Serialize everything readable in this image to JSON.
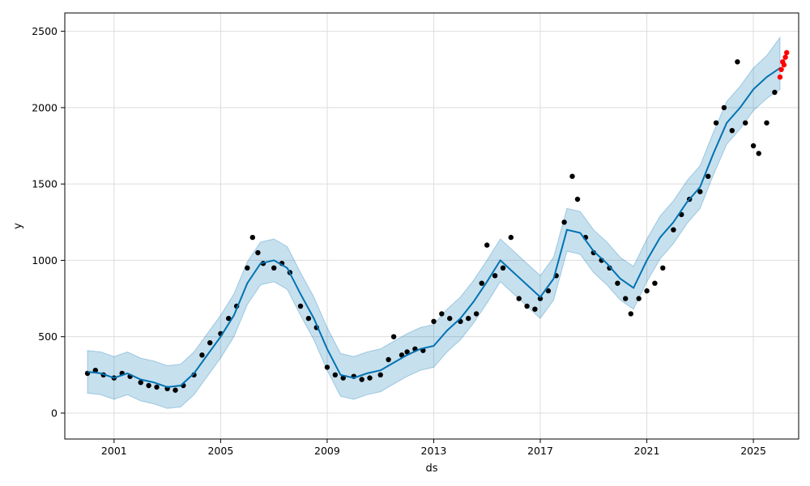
{
  "chart_data": {
    "type": "line",
    "title": "",
    "xlabel": "ds",
    "ylabel": "y",
    "x_tick_labels": [
      "2001",
      "2005",
      "2009",
      "2013",
      "2017",
      "2021",
      "2025"
    ],
    "y_tick_labels": [
      "0",
      "500",
      "1000",
      "1500",
      "2000",
      "2500"
    ],
    "xlim": [
      1999.15,
      2026.7
    ],
    "ylim": [
      -170,
      2620
    ],
    "grid": true,
    "colors": {
      "forecast_line": "#0072B2",
      "uncertainty_band": "#0072B2",
      "observed_points": "#000000",
      "recent_points": "#ff0000"
    },
    "series": [
      {
        "role": "forecast",
        "x": [
          2000.0,
          2000.5,
          2001.0,
          2001.5,
          2002.0,
          2002.5,
          2003.0,
          2003.5,
          2004.0,
          2004.5,
          2005.0,
          2005.5,
          2006.0,
          2006.5,
          2007.0,
          2007.5,
          2008.0,
          2008.5,
          2009.0,
          2009.5,
          2010.0,
          2010.5,
          2011.0,
          2011.5,
          2012.0,
          2012.5,
          2013.0,
          2013.5,
          2014.0,
          2014.5,
          2015.0,
          2015.5,
          2016.0,
          2016.5,
          2017.0,
          2017.5,
          2018.0,
          2018.5,
          2019.0,
          2019.5,
          2020.0,
          2020.5,
          2021.0,
          2021.5,
          2022.0,
          2022.5,
          2023.0,
          2023.5,
          2024.0,
          2024.5,
          2025.0,
          2025.5,
          2026.0
        ],
        "y": [
          270,
          260,
          230,
          260,
          220,
          200,
          170,
          180,
          260,
          380,
          500,
          640,
          850,
          980,
          1000,
          950,
          780,
          620,
          420,
          250,
          230,
          260,
          280,
          330,
          380,
          420,
          440,
          540,
          620,
          730,
          860,
          1000,
          920,
          840,
          760,
          880,
          1200,
          1180,
          1060,
          980,
          880,
          820,
          1000,
          1150,
          1250,
          1380,
          1480,
          1700,
          1900,
          2000,
          2120,
          2200,
          2260
        ]
      },
      {
        "role": "uncertainty_upper",
        "x": [
          2000.0,
          2000.5,
          2001.0,
          2001.5,
          2002.0,
          2002.5,
          2003.0,
          2003.5,
          2004.0,
          2004.5,
          2005.0,
          2005.5,
          2006.0,
          2006.5,
          2007.0,
          2007.5,
          2008.0,
          2008.5,
          2009.0,
          2009.5,
          2010.0,
          2010.5,
          2011.0,
          2011.5,
          2012.0,
          2012.5,
          2013.0,
          2013.5,
          2014.0,
          2014.5,
          2015.0,
          2015.5,
          2016.0,
          2016.5,
          2017.0,
          2017.5,
          2018.0,
          2018.5,
          2019.0,
          2019.5,
          2020.0,
          2020.5,
          2021.0,
          2021.5,
          2022.0,
          2022.5,
          2023.0,
          2023.5,
          2024.0,
          2024.5,
          2025.0,
          2025.5,
          2026.0
        ],
        "y": [
          410,
          400,
          370,
          400,
          360,
          340,
          310,
          320,
          400,
          520,
          640,
          780,
          990,
          1120,
          1140,
          1090,
          920,
          760,
          560,
          390,
          370,
          400,
          420,
          470,
          520,
          560,
          580,
          680,
          760,
          870,
          1000,
          1140,
          1060,
          980,
          900,
          1020,
          1340,
          1320,
          1200,
          1120,
          1020,
          960,
          1140,
          1290,
          1390,
          1520,
          1620,
          1840,
          2040,
          2140,
          2260,
          2340,
          2460
        ]
      },
      {
        "role": "uncertainty_lower",
        "x": [
          2000.0,
          2000.5,
          2001.0,
          2001.5,
          2002.0,
          2002.5,
          2003.0,
          2003.5,
          2004.0,
          2004.5,
          2005.0,
          2005.5,
          2006.0,
          2006.5,
          2007.0,
          2007.5,
          2008.0,
          2008.5,
          2009.0,
          2009.5,
          2010.0,
          2010.5,
          2011.0,
          2011.5,
          2012.0,
          2012.5,
          2013.0,
          2013.5,
          2014.0,
          2014.5,
          2015.0,
          2015.5,
          2016.0,
          2016.5,
          2017.0,
          2017.5,
          2018.0,
          2018.5,
          2019.0,
          2019.5,
          2020.0,
          2020.5,
          2021.0,
          2021.5,
          2022.0,
          2022.5,
          2023.0,
          2023.5,
          2024.0,
          2024.5,
          2025.0,
          2025.5,
          2026.0
        ],
        "y": [
          130,
          120,
          90,
          120,
          80,
          60,
          30,
          40,
          120,
          240,
          360,
          500,
          710,
          840,
          860,
          810,
          640,
          480,
          280,
          110,
          90,
          120,
          140,
          190,
          240,
          280,
          300,
          400,
          480,
          590,
          720,
          860,
          780,
          700,
          620,
          740,
          1060,
          1040,
          920,
          840,
          740,
          680,
          860,
          1010,
          1110,
          1240,
          1340,
          1560,
          1760,
          1860,
          1980,
          2060,
          2120
        ]
      },
      {
        "role": "observed",
        "x": [
          2000.0,
          2000.3,
          2000.6,
          2001.0,
          2001.3,
          2001.6,
          2002.0,
          2002.3,
          2002.6,
          2003.0,
          2003.3,
          2003.6,
          2004.0,
          2004.3,
          2004.6,
          2005.0,
          2005.3,
          2005.6,
          2006.0,
          2006.2,
          2006.4,
          2006.6,
          2007.0,
          2007.3,
          2007.6,
          2008.0,
          2008.3,
          2008.6,
          2009.0,
          2009.3,
          2009.6,
          2010.0,
          2010.3,
          2010.6,
          2011.0,
          2011.3,
          2011.5,
          2011.8,
          2012.0,
          2012.3,
          2012.6,
          2013.0,
          2013.3,
          2013.6,
          2014.0,
          2014.3,
          2014.6,
          2014.8,
          2015.0,
          2015.3,
          2015.6,
          2015.9,
          2016.2,
          2016.5,
          2016.8,
          2017.0,
          2017.3,
          2017.6,
          2017.9,
          2018.2,
          2018.4,
          2018.7,
          2019.0,
          2019.3,
          2019.6,
          2019.9,
          2020.2,
          2020.4,
          2020.7,
          2021.0,
          2021.3,
          2021.6,
          2022.0,
          2022.3,
          2022.6,
          2023.0,
          2023.3,
          2023.6,
          2023.9,
          2024.2,
          2024.4,
          2024.7,
          2025.0,
          2025.2,
          2025.5,
          2025.8
        ],
        "y": [
          260,
          280,
          250,
          230,
          260,
          240,
          200,
          180,
          170,
          160,
          150,
          180,
          250,
          380,
          460,
          520,
          620,
          700,
          950,
          1150,
          1050,
          980,
          950,
          980,
          920,
          700,
          620,
          560,
          300,
          250,
          230,
          240,
          220,
          230,
          250,
          350,
          500,
          380,
          400,
          420,
          410,
          600,
          650,
          620,
          600,
          620,
          650,
          850,
          1100,
          900,
          950,
          1150,
          750,
          700,
          680,
          750,
          800,
          900,
          1250,
          1550,
          1400,
          1150,
          1050,
          1000,
          950,
          850,
          750,
          650,
          750,
          800,
          850,
          950,
          1200,
          1300,
          1400,
          1450,
          1550,
          1900,
          2000,
          1850,
          2300,
          1900,
          1750,
          1700,
          1900,
          2100
        ]
      },
      {
        "role": "recent",
        "x": [
          2026.0,
          2026.05,
          2026.1,
          2026.15,
          2026.2,
          2026.25
        ],
        "y": [
          2200,
          2250,
          2300,
          2280,
          2330,
          2360
        ]
      }
    ]
  }
}
